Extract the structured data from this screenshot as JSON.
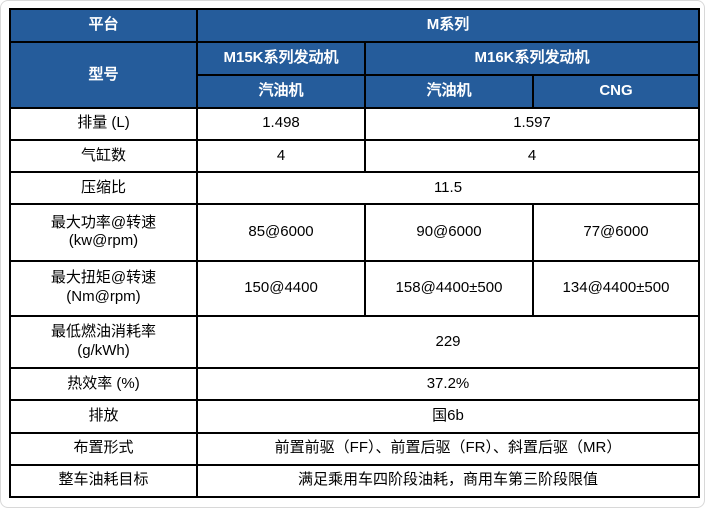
{
  "theme": {
    "header_bg": "#255C9B",
    "header_text": "#FFFFFF",
    "border_color": "#000000",
    "body_text": "#000000"
  },
  "table": {
    "header": {
      "platform_label": "平台",
      "platform_value": "M系列",
      "model_label": "型号",
      "m15k_series": "M15K系列发动机",
      "m16k_series": "M16K系列发动机",
      "m15k_fuel_type": "汽油机",
      "m16k_fuel_type": "汽油机",
      "m16k_cng": "CNG"
    },
    "rows": {
      "displacement": {
        "label": "排量 (L)",
        "m15k": "1.498",
        "m16k": "1.597"
      },
      "cylinders": {
        "label": "气缸数",
        "m15k": "4",
        "m16k": "4"
      },
      "compression_ratio": {
        "label": "压缩比",
        "all": "11.5"
      },
      "max_power": {
        "label": "最大功率@转速",
        "unit": "(kw@rpm)",
        "m15k_gasoline": "85@6000",
        "m16k_gasoline": "90@6000",
        "m16k_cng": "77@6000"
      },
      "max_torque": {
        "label": "最大扭矩@转速",
        "unit": "(Nm@rpm)",
        "m15k_gasoline": "150@4400",
        "m16k_gasoline": "158@4400±500",
        "m16k_cng": "134@4400±500"
      },
      "min_fuel_consumption": {
        "label": "最低燃油消耗率",
        "unit": "(g/kWh)",
        "all": "229"
      },
      "thermal_efficiency": {
        "label": "热效率 (%)",
        "all": "37.2%"
      },
      "emission": {
        "label": "排放",
        "all": "国6b"
      },
      "drivetrain_layout": {
        "label": "布置形式",
        "all": "前置前驱（FF）、前置后驱（FR）、斜置后驱（MR）"
      },
      "vehicle_fuel_target": {
        "label": "整车油耗目标",
        "all": "满足乘用车四阶段油耗，商用车第三阶段限值"
      }
    }
  }
}
